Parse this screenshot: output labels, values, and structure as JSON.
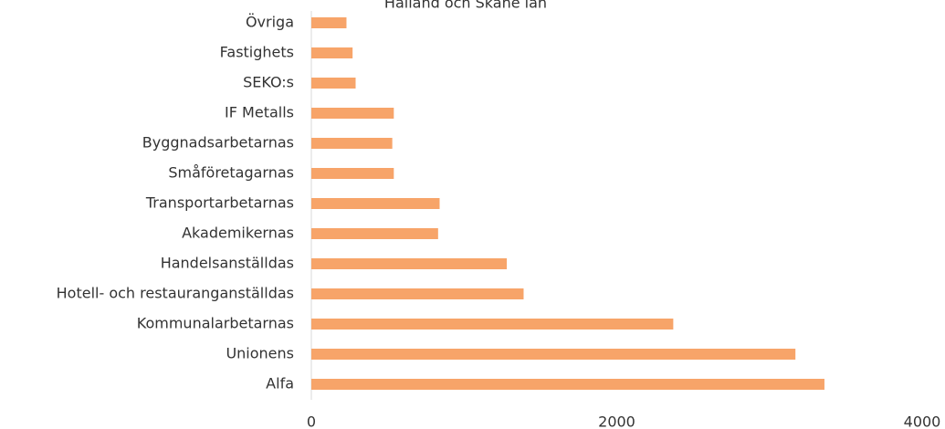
{
  "chart_data": {
    "type": "hbar",
    "title": "Halland och Skåne län",
    "categories": [
      "Övriga",
      "Fastighets",
      "SEKO:s",
      "IF Metalls",
      "Byggnadsarbetarnas",
      "Småföretagarnas",
      "Transportarbetarnas",
      "Akademikernas",
      "Handelsanställdas",
      "Hotell- och restauranganställdas",
      "Kommunalarbetarnas",
      "Unionens",
      "Alfa"
    ],
    "values": [
      230,
      270,
      290,
      540,
      530,
      540,
      840,
      830,
      1280,
      1390,
      2370,
      3170,
      3360
    ],
    "color": "#f7a469",
    "xlim": [
      0,
      4000
    ],
    "xticks": [
      0,
      2000,
      4000
    ],
    "grid": false
  }
}
